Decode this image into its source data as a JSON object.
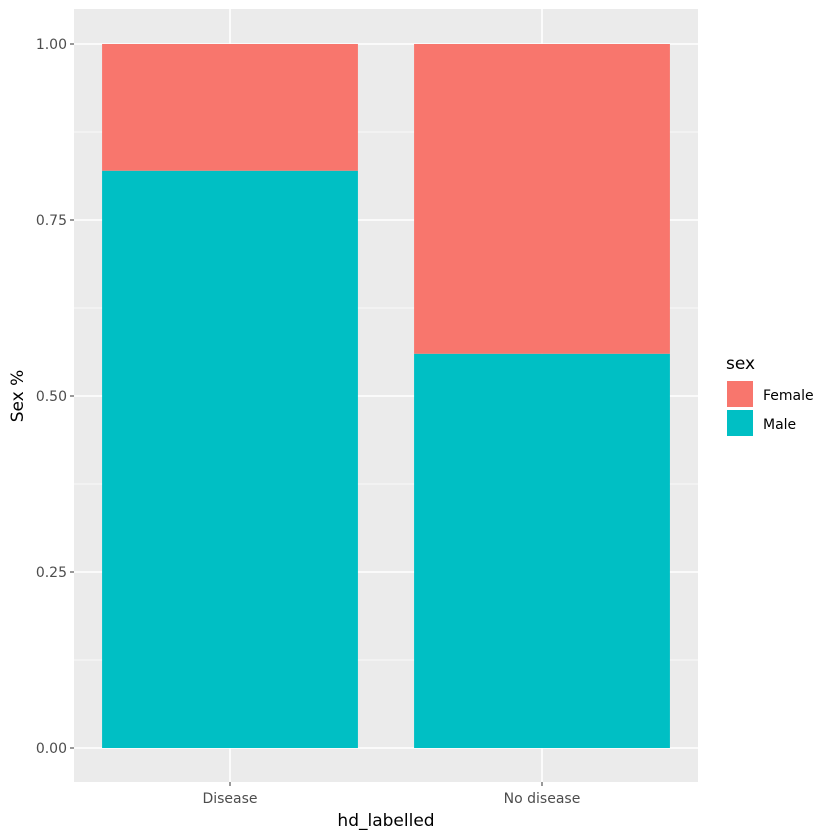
{
  "chart_data": {
    "type": "bar",
    "stacked": true,
    "categories": [
      "Disease",
      "No disease"
    ],
    "series": [
      {
        "name": "Male",
        "values": [
          0.82,
          0.56
        ],
        "color": "#00BFC4"
      },
      {
        "name": "Female",
        "values": [
          0.18,
          0.44
        ],
        "color": "#F8766D"
      }
    ],
    "xlabel": "hd_labelled",
    "ylabel": "Sex %",
    "ylim": [
      0,
      1
    ],
    "yticks": [
      "0.00",
      "0.25",
      "0.50",
      "0.75",
      "1.00"
    ],
    "grid": true,
    "panel_background": "#EBEBEB",
    "legend": {
      "title": "sex",
      "position": "right",
      "items": [
        {
          "label": "Female",
          "color": "#F8766D"
        },
        {
          "label": "Male",
          "color": "#00BFC4"
        }
      ]
    }
  }
}
